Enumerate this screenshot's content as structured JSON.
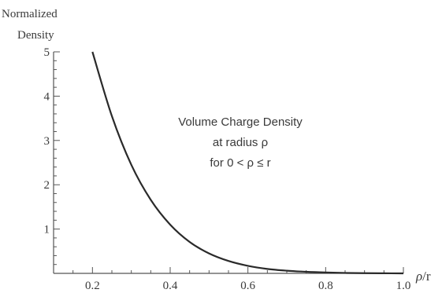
{
  "chart_data": {
    "type": "line",
    "ylabel_lines": [
      "Normalized",
      "Density"
    ],
    "xlabel_parts": {
      "num": "ρ",
      "sep": "/r"
    },
    "annotation": [
      "Volume Charge Density",
      "at radius ρ",
      "for 0 < ρ ≤ r"
    ],
    "xlim": [
      0.1,
      1.0
    ],
    "ylim": [
      0,
      5
    ],
    "x_ticks": [
      0.2,
      0.4,
      0.6,
      0.8,
      1.0
    ],
    "x_tick_labels": [
      "0.2",
      "0.4",
      "0.6",
      "0.8",
      "1.0"
    ],
    "y_ticks": [
      1,
      2,
      3,
      4,
      5
    ],
    "y_tick_labels": [
      "1",
      "2",
      "3",
      "4",
      "5"
    ],
    "series": [
      {
        "x": [
          0.2,
          0.25,
          0.3,
          0.35,
          0.4,
          0.45,
          0.5,
          0.55,
          0.6,
          0.65,
          0.7,
          0.75,
          0.8,
          0.85,
          0.9,
          0.95,
          1.0
        ],
        "y": [
          5.0,
          3.55,
          2.45,
          1.66,
          1.1,
          0.71,
          0.45,
          0.28,
          0.17,
          0.1,
          0.06,
          0.035,
          0.02,
          0.01,
          0.005,
          0.002,
          0.0
        ]
      }
    ]
  }
}
